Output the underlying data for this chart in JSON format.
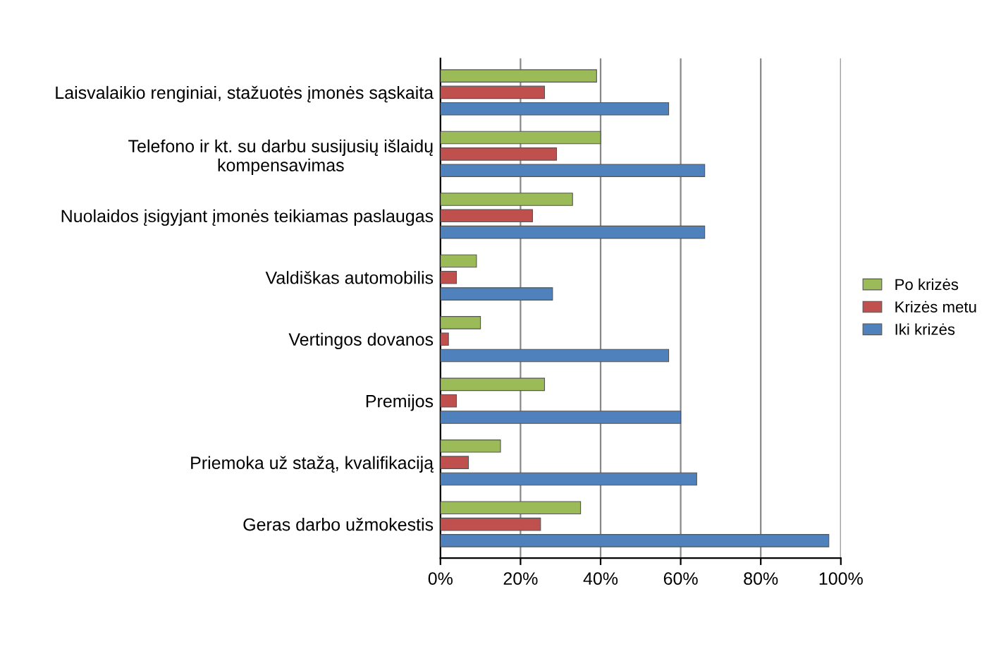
{
  "chart_data": {
    "type": "bar",
    "orientation": "horizontal",
    "categories": [
      "Laisvalaikio renginiai, stažuotės įmonės sąskaita",
      "Telefono ir kt. su darbu susijusių išlaidų kompensavimas",
      "Nuolaidos įsigyjant įmonės teikiamas paslaugas",
      "Valdiškas automobilis",
      "Vertingos dovanos",
      "Premijos",
      "Priemoka už stažą, kvalifikaciją",
      "Geras darbo užmokestis"
    ],
    "series": [
      {
        "name": "Po krizės",
        "color": "#9bbb59",
        "values": [
          39,
          40,
          33,
          9,
          10,
          26,
          15,
          35
        ]
      },
      {
        "name": "Krizės metu",
        "color": "#c0504d",
        "values": [
          26,
          29,
          23,
          4,
          2,
          4,
          7,
          25
        ]
      },
      {
        "name": "Iki krizės",
        "color": "#4f81bd",
        "values": [
          57,
          66,
          66,
          28,
          57,
          60,
          64,
          97
        ]
      }
    ],
    "xlim": [
      0,
      100
    ],
    "xticks": [
      {
        "value": 0,
        "label": "0%"
      },
      {
        "value": 20,
        "label": "20%"
      },
      {
        "value": 40,
        "label": "40%"
      },
      {
        "value": 60,
        "label": "60%"
      },
      {
        "value": 80,
        "label": "80%"
      },
      {
        "value": 100,
        "label": "100%"
      }
    ],
    "grid": "x",
    "legend": "right"
  }
}
